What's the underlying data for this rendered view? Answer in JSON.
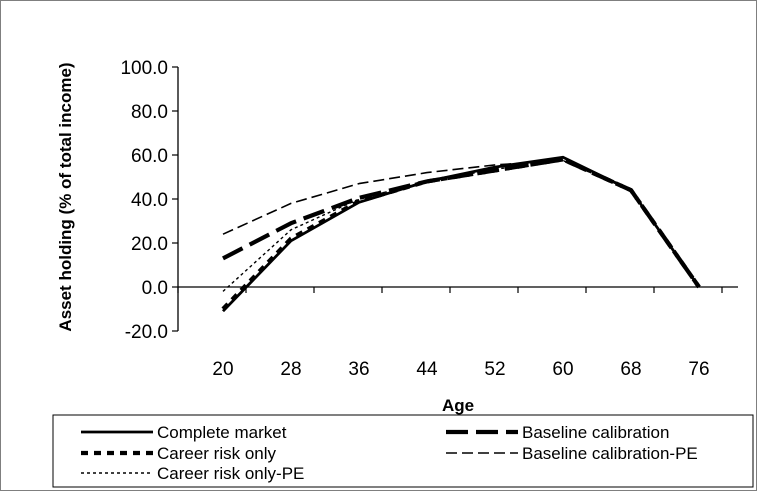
{
  "chart_data": {
    "type": "line",
    "title": "",
    "xlabel": "Age",
    "ylabel": "Asset holding (% of total income)",
    "categories": [
      "20",
      "28",
      "36",
      "44",
      "52",
      "60",
      "68",
      "76"
    ],
    "y_tick_labels": [
      "100.0",
      "80.0",
      "60.0",
      "40.0",
      "20.0",
      "0.0",
      "-20.0"
    ],
    "ylim": [
      -20,
      100
    ],
    "grid": false,
    "legend_position": "bottom",
    "series": [
      {
        "name": "Complete market",
        "values": [
          -11,
          21,
          38.5,
          48,
          54.5,
          59,
          44,
          0
        ]
      },
      {
        "name": "Baseline calibration",
        "values": [
          13,
          29,
          40.5,
          48,
          53,
          58,
          44,
          0
        ]
      },
      {
        "name": "Career risk only",
        "values": [
          -10,
          22,
          39,
          48,
          53,
          58,
          44,
          0
        ]
      },
      {
        "name": "Baseline calibration-PE",
        "values": [
          24,
          38,
          47,
          52,
          55.5,
          57.5,
          44,
          0
        ]
      },
      {
        "name": "Career risk only-PE",
        "values": [
          -2,
          26,
          40,
          48,
          53.5,
          57.5,
          44,
          0
        ]
      }
    ]
  }
}
